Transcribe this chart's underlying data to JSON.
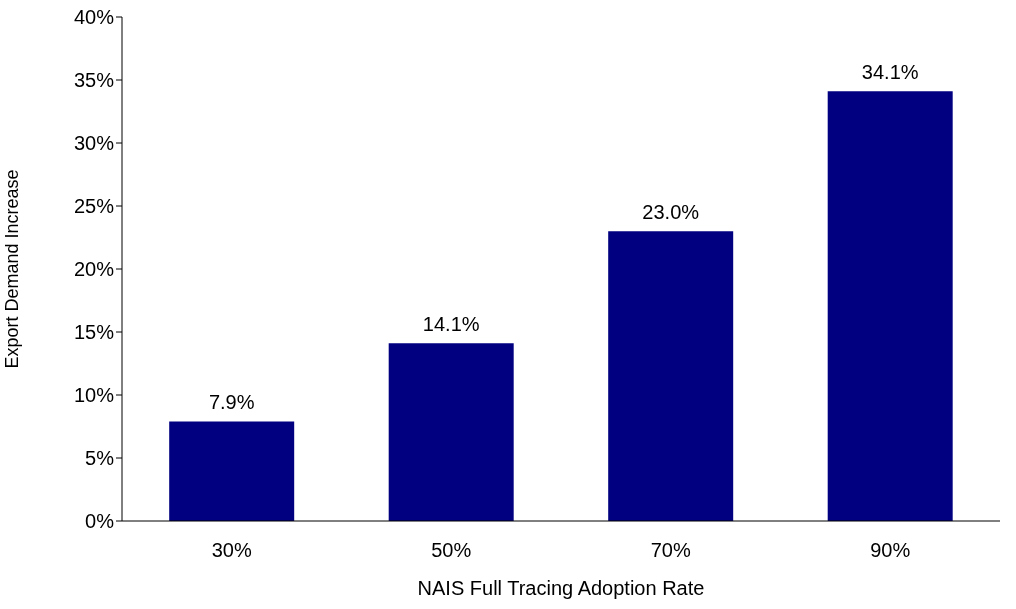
{
  "chart_data": {
    "type": "bar",
    "xlabel": "NAIS Full Tracing Adoption Rate",
    "ylabel": "Export Demand Increase",
    "categories": [
      "30%",
      "50%",
      "70%",
      "90%"
    ],
    "values": [
      7.9,
      14.1,
      23.0,
      34.1
    ],
    "value_labels": [
      "7.9%",
      "14.1%",
      "23.0%",
      "34.1%"
    ],
    "color": "#000080",
    "ylim": [
      0,
      40
    ],
    "yticks": [
      {
        "value": 0,
        "label": "0%"
      },
      {
        "value": 5,
        "label": "5%"
      },
      {
        "value": 10,
        "label": "10%"
      },
      {
        "value": 15,
        "label": "15%"
      },
      {
        "value": 20,
        "label": "20%"
      },
      {
        "value": 25,
        "label": "25%"
      },
      {
        "value": 30,
        "label": "30%"
      },
      {
        "value": 35,
        "label": "35%"
      },
      {
        "value": 40,
        "label": "40%"
      }
    ],
    "grid": false,
    "legend": false
  }
}
